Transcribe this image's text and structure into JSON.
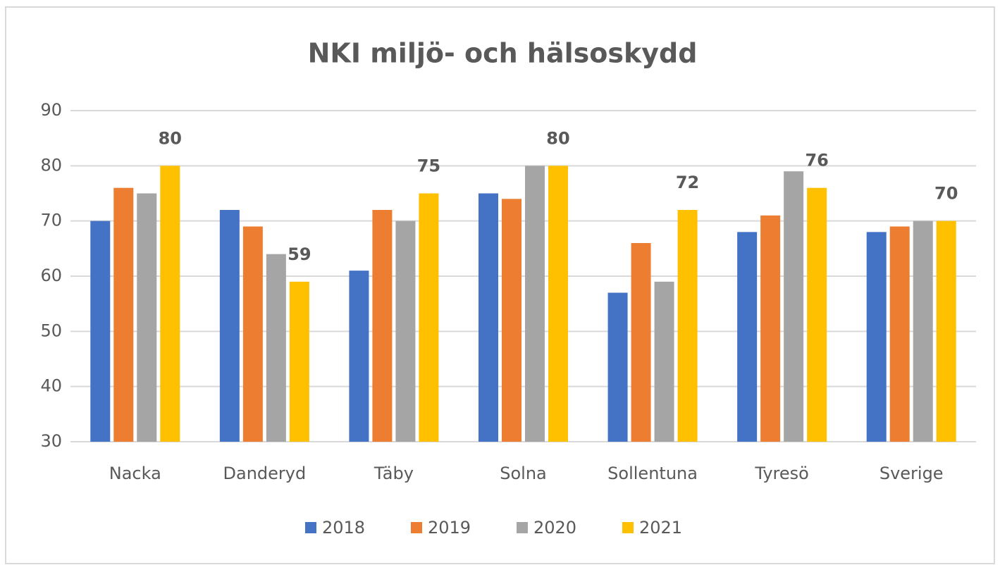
{
  "chart_data": {
    "type": "bar",
    "title": "NKI miljö- och hälsoskydd",
    "categories": [
      "Nacka",
      "Danderyd",
      "Täby",
      "Solna",
      "Sollentuna",
      "Tyresö",
      "Sverige"
    ],
    "series": [
      {
        "name": "2018",
        "color": "#4472c4",
        "values": [
          70,
          72,
          61,
          75,
          57,
          68,
          68
        ]
      },
      {
        "name": "2019",
        "color": "#ed7d31",
        "values": [
          76,
          69,
          72,
          74,
          66,
          71,
          69
        ]
      },
      {
        "name": "2020",
        "color": "#a5a5a5",
        "values": [
          75,
          64,
          70,
          80,
          59,
          79,
          70
        ]
      },
      {
        "name": "2021",
        "color": "#ffc000",
        "values": [
          80,
          59,
          75,
          80,
          72,
          76,
          70
        ],
        "show_labels": true
      }
    ],
    "ylim": [
      30,
      90
    ],
    "yticks": [
      30,
      40,
      50,
      60,
      70,
      80,
      90
    ],
    "grid": true,
    "legend": "bottom"
  }
}
